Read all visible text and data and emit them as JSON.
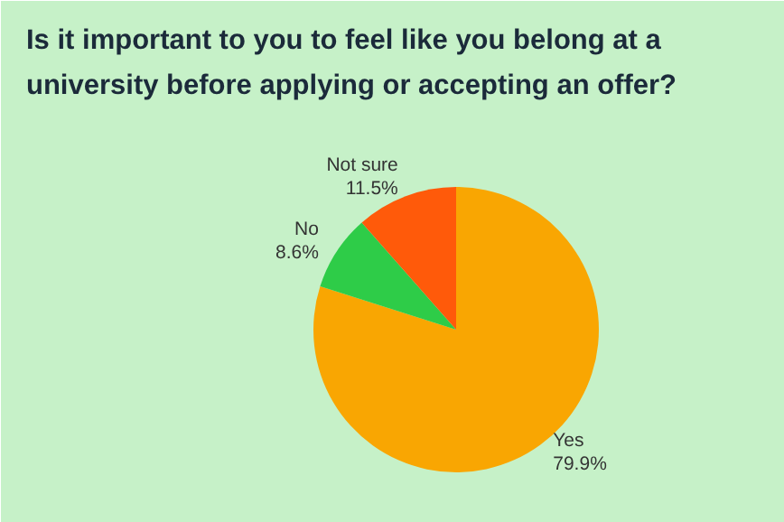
{
  "chart_data": {
    "type": "pie",
    "title": "Is it important to you to feel like you belong at a university before applying or accepting an offer?",
    "categories": [
      "Yes",
      "No",
      "Not sure"
    ],
    "values": [
      79.9,
      8.6,
      11.5
    ],
    "colors": [
      "#f9a602",
      "#2ecc48",
      "#ff5a0a"
    ],
    "value_labels": [
      "79.9%",
      "8.6%",
      "11.5%"
    ]
  }
}
